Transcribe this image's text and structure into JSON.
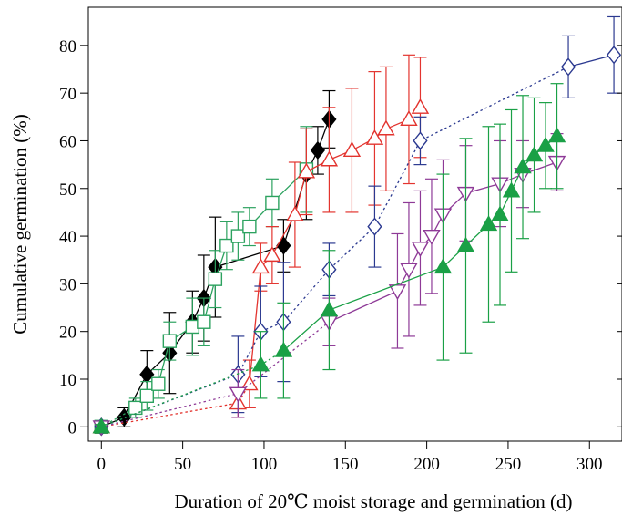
{
  "chart_data": {
    "type": "scatter",
    "title": "",
    "xlabel": "Duration of 20℃ moist storage and germination (d)",
    "ylabel": "Cumulative germination (%)",
    "xlim": [
      -8,
      320
    ],
    "ylim": [
      -3,
      88
    ],
    "xticks": [
      0,
      50,
      100,
      150,
      200,
      250,
      300
    ],
    "yticks": [
      0,
      10,
      20,
      30,
      40,
      50,
      60,
      70,
      80
    ],
    "xtick_labels": [
      "0",
      "50",
      "100",
      "150",
      "200",
      "250",
      "300"
    ],
    "ytick_labels": [
      "0",
      "10",
      "20",
      "30",
      "40",
      "50",
      "60",
      "70",
      "80"
    ],
    "grid": false,
    "legend": "none",
    "series": [
      {
        "marker": "diamond-filled",
        "color": "#000000",
        "connector": [
          {
            "style": "solid",
            "from": 0,
            "to": 11
          }
        ],
        "points": [
          {
            "x": 0,
            "y": 0,
            "err": 0.5
          },
          {
            "x": 14,
            "y": 2,
            "err": 2
          },
          {
            "x": 28,
            "y": 11,
            "err": 5
          },
          {
            "x": 42,
            "y": 15.5,
            "err": 8.5
          },
          {
            "x": 56,
            "y": 22,
            "err": 6.5
          },
          {
            "x": 63,
            "y": 27,
            "err": 9
          },
          {
            "x": 70,
            "y": 33.5,
            "err": 10.5
          },
          {
            "x": 112,
            "y": 38,
            "err": 5.5
          },
          {
            "x": 126,
            "y": 53,
            "err": 9.5
          },
          {
            "x": 133,
            "y": 58,
            "err": 5
          },
          {
            "x": 140,
            "y": 64.5,
            "err": 6
          }
        ]
      },
      {
        "marker": "square-open",
        "color": "#2ca25f",
        "connector": [
          {
            "style": "dotted",
            "from": 0,
            "to": 3
          },
          {
            "style": "solid",
            "from": 2,
            "to": 14
          }
        ],
        "points": [
          {
            "x": 0,
            "y": 0,
            "err": 0.5
          },
          {
            "x": 21,
            "y": 4,
            "err": 2
          },
          {
            "x": 28,
            "y": 6.5,
            "err": 3
          },
          {
            "x": 35,
            "y": 9,
            "err": 3
          },
          {
            "x": 42,
            "y": 18,
            "err": 4
          },
          {
            "x": 56,
            "y": 21,
            "err": 6
          },
          {
            "x": 63,
            "y": 22,
            "err": 5
          },
          {
            "x": 70,
            "y": 31,
            "err": 6
          },
          {
            "x": 77,
            "y": 38,
            "err": 5
          },
          {
            "x": 84,
            "y": 40,
            "err": 5
          },
          {
            "x": 91,
            "y": 42,
            "err": 4
          },
          {
            "x": 105,
            "y": 47,
            "err": 5
          },
          {
            "x": 126,
            "y": 54,
            "err": 9
          }
        ]
      },
      {
        "marker": "triangle-up-open",
        "color": "#e3342f",
        "connector": [
          {
            "style": "dotted",
            "from": 0,
            "to": 3
          },
          {
            "style": "solid",
            "from": 2,
            "to": 12
          }
        ],
        "points": [
          {
            "x": 0,
            "y": 0,
            "err": 0.5
          },
          {
            "x": 84,
            "y": 5,
            "err": 3
          },
          {
            "x": 91,
            "y": 9,
            "err": 5
          },
          {
            "x": 98,
            "y": 33.5,
            "err": 5
          },
          {
            "x": 105,
            "y": 36,
            "err": 6
          },
          {
            "x": 119,
            "y": 44.5,
            "err": 11
          },
          {
            "x": 126,
            "y": 53.5,
            "err": 9
          },
          {
            "x": 140,
            "y": 56,
            "err": 11
          },
          {
            "x": 154,
            "y": 58,
            "err": 13
          },
          {
            "x": 168,
            "y": 60.5,
            "err": 14
          },
          {
            "x": 175,
            "y": 62.5,
            "err": 13
          },
          {
            "x": 189,
            "y": 64.5,
            "err": 13.5
          },
          {
            "x": 196,
            "y": 67,
            "err": 10.5
          }
        ]
      },
      {
        "marker": "diamond-open",
        "color": "#2b3990",
        "connector": [
          {
            "style": "dotted",
            "from": 0,
            "to": 8
          },
          {
            "style": "solid",
            "from": 7,
            "to": 10
          }
        ],
        "points": [
          {
            "x": 0,
            "y": 0,
            "err": 0.5
          },
          {
            "x": 84,
            "y": 11,
            "err": 8
          },
          {
            "x": 98,
            "y": 20,
            "err": 9.5
          },
          {
            "x": 112,
            "y": 22,
            "err": 12.5
          },
          {
            "x": 140,
            "y": 33,
            "err": 5.5
          },
          {
            "x": 168,
            "y": 42,
            "err": 8.5
          },
          {
            "x": 196,
            "y": 60,
            "err": 5
          },
          {
            "x": 287,
            "y": 75.5,
            "err": 6.5
          },
          {
            "x": 315,
            "y": 78,
            "err": 8
          }
        ]
      },
      {
        "marker": "triangle-down-open",
        "color": "#8e3a97",
        "connector": [
          {
            "style": "dotted",
            "from": 0,
            "to": 3
          },
          {
            "style": "solid",
            "from": 2,
            "to": 12
          }
        ],
        "points": [
          {
            "x": 0,
            "y": 0,
            "err": 0.5
          },
          {
            "x": 84,
            "y": 7,
            "err": 5
          },
          {
            "x": 140,
            "y": 22,
            "err": 5
          },
          {
            "x": 182,
            "y": 28.5,
            "err": 12
          },
          {
            "x": 189,
            "y": 33,
            "err": 14
          },
          {
            "x": 196,
            "y": 37.5,
            "err": 12
          },
          {
            "x": 203,
            "y": 40,
            "err": 12
          },
          {
            "x": 210,
            "y": 44.5,
            "err": 11.5
          },
          {
            "x": 224,
            "y": 49,
            "err": 10
          },
          {
            "x": 245,
            "y": 51,
            "err": 9
          },
          {
            "x": 259,
            "y": 53,
            "err": 7
          },
          {
            "x": 280,
            "y": 55.5,
            "err": 6
          }
        ]
      },
      {
        "marker": "triangle-up-filled",
        "color": "#1aa046",
        "connector": [
          {
            "style": "dotted",
            "from": 0,
            "to": 3
          },
          {
            "style": "solid",
            "from": 2,
            "to": 14
          }
        ],
        "points": [
          {
            "x": 0,
            "y": 0,
            "err": 0.5
          },
          {
            "x": 98,
            "y": 13,
            "err": 7
          },
          {
            "x": 112,
            "y": 16,
            "err": 10
          },
          {
            "x": 140,
            "y": 24.5,
            "err": 12.5
          },
          {
            "x": 210,
            "y": 33.5,
            "err": 19.5
          },
          {
            "x": 224,
            "y": 38,
            "err": 22.5
          },
          {
            "x": 238,
            "y": 42.5,
            "err": 20.5
          },
          {
            "x": 245,
            "y": 44.5,
            "err": 19
          },
          {
            "x": 252,
            "y": 49.5,
            "err": 17
          },
          {
            "x": 259,
            "y": 54.5,
            "err": 15
          },
          {
            "x": 266,
            "y": 57,
            "err": 12
          },
          {
            "x": 273,
            "y": 59,
            "err": 9
          },
          {
            "x": 280,
            "y": 61,
            "err": 11
          }
        ]
      }
    ]
  }
}
